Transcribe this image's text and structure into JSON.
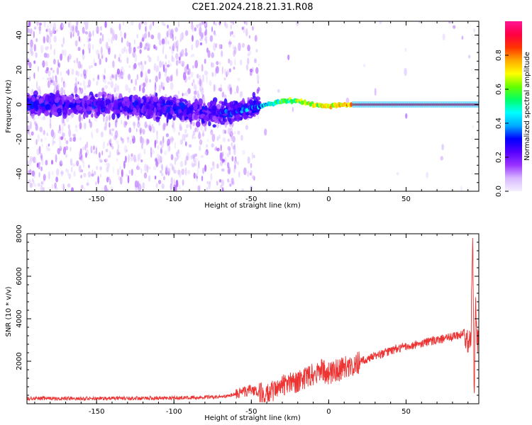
{
  "title": "C2E1.2024.218.21.31.R08",
  "chart_data": [
    {
      "type": "heatmap",
      "xlabel": "Height of straight line (km)",
      "ylabel": "Frequency (Hz)",
      "xlim": [
        -195,
        97
      ],
      "ylim": [
        -50,
        48
      ],
      "xticks": [
        -150,
        -100,
        -50,
        0,
        50
      ],
      "yticks": [
        -40,
        -20,
        0,
        20,
        40
      ],
      "colorbar": {
        "label": "Normalized spectral amplitude",
        "range": [
          0,
          1
        ],
        "ticks": [
          0.0,
          0.2,
          0.4,
          0.6,
          0.8
        ],
        "colormap": [
          "#f5f0ff",
          "#d8b8ff",
          "#9933ff",
          "#5500ff",
          "#0000ff",
          "#00aaff",
          "#00ffff",
          "#00ff66",
          "#66ff00",
          "#ffff00",
          "#ffaa00",
          "#ff3300",
          "#ff0044",
          "#ff1493"
        ]
      },
      "ridge": {
        "description_points_x": [
          -195,
          -150,
          -100,
          -80,
          -60,
          -50,
          -40,
          -30,
          -20,
          -10,
          0,
          10,
          20,
          50,
          95
        ],
        "frequency_y": [
          0,
          0,
          -2,
          -5,
          -4,
          -2,
          0,
          2,
          2,
          0,
          -1,
          0,
          0,
          0,
          0
        ],
        "amplitude": [
          0.12,
          0.12,
          0.13,
          0.18,
          0.3,
          0.35,
          0.4,
          0.55,
          0.6,
          0.65,
          0.7,
          0.75,
          0.92,
          0.92,
          0.92
        ]
      },
      "noise_density_regions": [
        {
          "x_range": [
            -195,
            -60
          ],
          "level": "high"
        },
        {
          "x_range": [
            -60,
            -45
          ],
          "level": "medium"
        },
        {
          "x_range": [
            -45,
            97
          ],
          "level": "low"
        }
      ]
    },
    {
      "type": "line",
      "xlabel": "Height of straight line (km)",
      "ylabel": "SNR (10 * v/v)",
      "xlim": [
        -195,
        97
      ],
      "ylim": [
        0,
        8000
      ],
      "xticks": [
        -150,
        -100,
        -50,
        0,
        50
      ],
      "yticks": [
        2000,
        4000,
        6000,
        8000
      ],
      "color": "#ee3333",
      "series": [
        {
          "x": [
            -195,
            -150,
            -100,
            -70,
            -60,
            -50,
            -45,
            -40,
            -30,
            -20,
            -10,
            -5,
            0,
            10,
            20,
            30,
            40,
            50,
            60,
            70,
            80,
            85,
            88,
            90,
            92,
            93,
            94,
            95,
            96,
            97
          ],
          "values": [
            250,
            250,
            270,
            320,
            450,
            650,
            500,
            400,
            850,
            1000,
            1400,
            1600,
            1400,
            1700,
            1950,
            2250,
            2500,
            2700,
            2850,
            3000,
            3150,
            3250,
            3400,
            3000,
            3400,
            8000,
            700,
            4500,
            3000,
            3200
          ]
        }
      ]
    }
  ]
}
